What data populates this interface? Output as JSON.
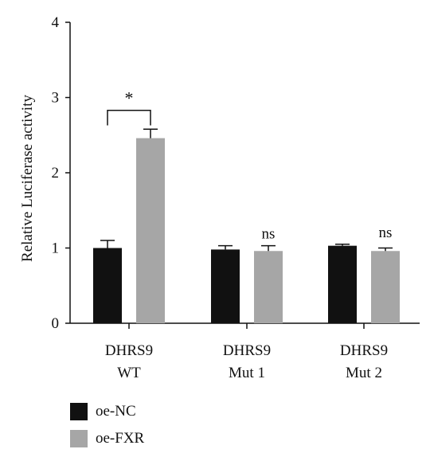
{
  "chart_data": {
    "type": "bar",
    "title": "",
    "xlabel": "",
    "ylabel": "Relative Luciferase activity",
    "ylim": [
      0,
      4
    ],
    "yticks": [
      "0",
      "1",
      "2",
      "3",
      "4"
    ],
    "grid": false,
    "legend_position": "bottom-left",
    "categories": [
      {
        "line1": "DHRS9",
        "line2": "WT"
      },
      {
        "line1": "DHRS9",
        "line2": "Mut 1"
      },
      {
        "line1": "DHRS9",
        "line2": "Mut 2"
      }
    ],
    "series": [
      {
        "name": "oe-NC",
        "color": "#111111",
        "values": [
          1.0,
          0.98,
          1.03
        ],
        "errors": [
          0.1,
          0.05,
          0.02
        ]
      },
      {
        "name": "oe-FXR",
        "color": "#a6a6a6",
        "values": [
          2.46,
          0.96,
          0.96
        ],
        "errors": [
          0.12,
          0.07,
          0.04
        ]
      }
    ],
    "annotations": [
      {
        "category_index": 0,
        "text": "*",
        "type": "bracket"
      },
      {
        "category_index": 1,
        "text": "ns",
        "type": "label"
      },
      {
        "category_index": 2,
        "text": "ns",
        "type": "label"
      }
    ]
  }
}
